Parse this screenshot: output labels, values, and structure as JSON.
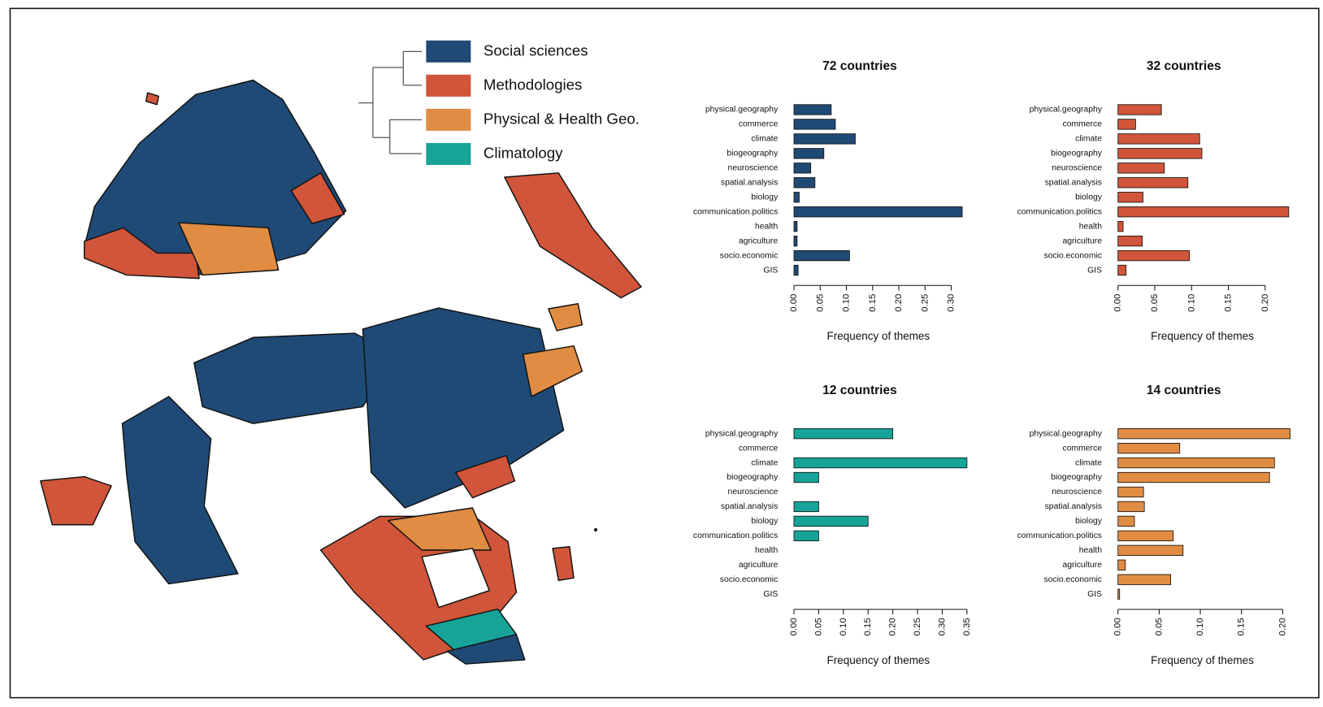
{
  "legend": {
    "items": [
      {
        "name": "Social sciences",
        "color": "#1f4a75"
      },
      {
        "name": "Methodologies",
        "color": "#d0553a"
      },
      {
        "name": "Physical & Health Geo.",
        "color": "#e08c42"
      },
      {
        "name": "Climatology",
        "color": "#17a398"
      }
    ]
  },
  "chart_data": [
    {
      "type": "bar",
      "orientation": "horizontal",
      "title": "72 countries",
      "categories": [
        "physical.geography",
        "commerce",
        "climate",
        "biogeography",
        "neuroscience",
        "spatial.analysis",
        "biology",
        "communication.politics",
        "health",
        "agriculture",
        "socio.economic",
        "GIS"
      ],
      "values": [
        0.071,
        0.079,
        0.117,
        0.057,
        0.032,
        0.04,
        0.01,
        0.321,
        0.006,
        0.006,
        0.106,
        0.008
      ],
      "color": "#1f4a75",
      "xlim": [
        0,
        0.33
      ],
      "xticks": [
        {
          "value": 0,
          "label": "0.00"
        },
        0.05,
        {
          "value": 0.1,
          "label": "0.10"
        },
        0.15,
        {
          "value": 0.2,
          "label": "0.20"
        },
        0.25,
        {
          "value": 0.3,
          "label": "0.30"
        }
      ],
      "xlabel": "Frequency of themes"
    },
    {
      "type": "bar",
      "orientation": "horizontal",
      "title": "32 countries",
      "categories": [
        "physical.geography",
        "commerce",
        "climate",
        "biogeography",
        "neuroscience",
        "spatial.analysis",
        "biology",
        "communication.politics",
        "health",
        "agriculture",
        "socio.economic",
        "GIS"
      ],
      "values": [
        0.059,
        0.024,
        0.111,
        0.114,
        0.063,
        0.095,
        0.034,
        0.232,
        0.007,
        0.033,
        0.097,
        0.011
      ],
      "color": "#d0553a",
      "xlim": [
        0,
        0.235
      ],
      "xticks": [
        {
          "value": 0,
          "label": "0.00"
        },
        0.05,
        {
          "value": 0.1,
          "label": "0.10"
        },
        0.15,
        {
          "value": 0.2,
          "label": "0.20"
        }
      ],
      "xlabel": "Frequency of themes"
    },
    {
      "type": "bar",
      "orientation": "horizontal",
      "title": "12 countries",
      "categories": [
        "physical.geography",
        "commerce",
        "climate",
        "biogeography",
        "neuroscience",
        "spatial.analysis",
        "biology",
        "communication.politics",
        "health",
        "agriculture",
        "socio.economic",
        "GIS"
      ],
      "values": [
        0.2,
        0,
        0.35,
        0.05,
        0,
        0.05,
        0.15,
        0.05,
        0,
        0,
        0,
        0
      ],
      "color": "#17a398",
      "xlim": [
        0,
        0.35
      ],
      "xticks": [
        {
          "value": 0,
          "label": "0.00"
        },
        0.05,
        {
          "value": 0.1,
          "label": "0.10"
        },
        0.15,
        {
          "value": 0.2,
          "label": "0.20"
        },
        0.25,
        {
          "value": 0.3,
          "label": "0.30"
        },
        0.35
      ],
      "xlabel": "Frequency of themes"
    },
    {
      "type": "bar",
      "orientation": "horizontal",
      "title": "14 countries",
      "categories": [
        "physical.geography",
        "commerce",
        "climate",
        "biogeography",
        "neuroscience",
        "spatial.analysis",
        "biology",
        "communication.politics",
        "health",
        "agriculture",
        "socio.economic",
        "GIS"
      ],
      "values": [
        0.209,
        0.075,
        0.19,
        0.184,
        0.031,
        0.032,
        0.02,
        0.067,
        0.079,
        0.009,
        0.064,
        0.002
      ],
      "color": "#e08c42",
      "xlim": [
        0,
        0.21
      ],
      "xticks": [
        {
          "value": 0,
          "label": "0.00"
        },
        0.05,
        {
          "value": 0.1,
          "label": "0.10"
        },
        0.15,
        {
          "value": 0.2,
          "label": "0.20"
        }
      ],
      "xlabel": "Frequency of themes"
    }
  ]
}
